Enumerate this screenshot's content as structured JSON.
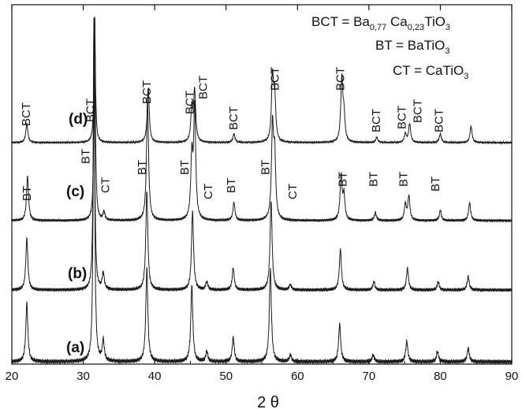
{
  "chart_data": {
    "type": "line",
    "xlabel": "2 θ",
    "ylabel": "",
    "xlim": [
      20,
      90
    ],
    "xticks": [
      20,
      30,
      40,
      50,
      60,
      70,
      80,
      90
    ],
    "grid": false,
    "legend": {
      "placement": "top-right",
      "entries": [
        {
          "lhs": "BCT = ",
          "parts": [
            [
              "Ba",
              ""
            ],
            [
              "0,77",
              "sub"
            ],
            [
              " Ca",
              ""
            ],
            [
              "0,23",
              "sub"
            ],
            [
              "TiO",
              ""
            ],
            [
              "3",
              "sub"
            ]
          ]
        },
        {
          "lhs": "BT = ",
          "parts": [
            [
              "BaTiO",
              ""
            ],
            [
              "3",
              "sub"
            ]
          ]
        },
        {
          "lhs": "CT = ",
          "parts": [
            [
              "CaTiO",
              ""
            ],
            [
              "3",
              "sub"
            ]
          ]
        }
      ]
    },
    "series": [
      {
        "name": "(a)",
        "peaks": [
          {
            "x": 22.1,
            "h": 0.17
          },
          {
            "x": 31.5,
            "h": 1.0
          },
          {
            "x": 32.8,
            "h": 0.06
          },
          {
            "x": 38.9,
            "h": 0.27
          },
          {
            "x": 45.2,
            "h": 0.22
          },
          {
            "x": 47.3,
            "h": 0.03
          },
          {
            "x": 51.0,
            "h": 0.07
          },
          {
            "x": 56.2,
            "h": 0.27
          },
          {
            "x": 59.0,
            "h": 0.02
          },
          {
            "x": 65.9,
            "h": 0.11
          },
          {
            "x": 70.6,
            "h": 0.02
          },
          {
            "x": 75.3,
            "h": 0.06
          },
          {
            "x": 79.6,
            "h": 0.03
          },
          {
            "x": 83.9,
            "h": 0.04
          }
        ]
      },
      {
        "name": "(b)",
        "peaks": [
          {
            "x": 22.1,
            "h": 0.19
          },
          {
            "x": 31.5,
            "h": 1.0
          },
          {
            "x": 32.8,
            "h": 0.06
          },
          {
            "x": 38.9,
            "h": 0.36
          },
          {
            "x": 45.3,
            "h": 0.29
          },
          {
            "x": 47.3,
            "h": 0.03
          },
          {
            "x": 51.0,
            "h": 0.08
          },
          {
            "x": 56.3,
            "h": 0.33
          },
          {
            "x": 59.0,
            "h": 0.02
          },
          {
            "x": 66.0,
            "h": 0.15
          },
          {
            "x": 70.7,
            "h": 0.03
          },
          {
            "x": 75.4,
            "h": 0.08
          },
          {
            "x": 79.7,
            "h": 0.03
          },
          {
            "x": 83.9,
            "h": 0.05
          }
        ]
      },
      {
        "name": "(c)",
        "peaks": [
          {
            "x": 22.2,
            "h": 0.22
          },
          {
            "x": 31.6,
            "h": 1.0
          },
          {
            "x": 32.9,
            "h": 0.04
          },
          {
            "x": 39.0,
            "h": 0.6
          },
          {
            "x": 45.2,
            "h": 0.3
          },
          {
            "x": 45.6,
            "h": 0.55
          },
          {
            "x": 51.1,
            "h": 0.09
          },
          {
            "x": 56.5,
            "h": 0.45
          },
          {
            "x": 56.8,
            "h": 0.3
          },
          {
            "x": 66.1,
            "h": 0.22
          },
          {
            "x": 66.5,
            "h": 0.12
          },
          {
            "x": 70.9,
            "h": 0.04
          },
          {
            "x": 75.1,
            "h": 0.08
          },
          {
            "x": 75.6,
            "h": 0.12
          },
          {
            "x": 80.0,
            "h": 0.05
          },
          {
            "x": 84.1,
            "h": 0.09
          }
        ]
      },
      {
        "name": "(d)",
        "peaks": [
          {
            "x": 22.1,
            "h": 0.15
          },
          {
            "x": 31.6,
            "h": 1.0
          },
          {
            "x": 39.1,
            "h": 0.43
          },
          {
            "x": 45.2,
            "h": 0.26
          },
          {
            "x": 45.6,
            "h": 0.4
          },
          {
            "x": 51.1,
            "h": 0.07
          },
          {
            "x": 56.5,
            "h": 0.5
          },
          {
            "x": 56.8,
            "h": 0.35
          },
          {
            "x": 66.2,
            "h": 0.5
          },
          {
            "x": 66.5,
            "h": 0.2
          },
          {
            "x": 71.1,
            "h": 0.04
          },
          {
            "x": 75.1,
            "h": 0.07
          },
          {
            "x": 75.7,
            "h": 0.15
          },
          {
            "x": 80.0,
            "h": 0.07
          },
          {
            "x": 84.3,
            "h": 0.13
          }
        ]
      }
    ],
    "phase_labels": [
      {
        "text": "BCT",
        "x": 22.0,
        "curve": "(d)"
      },
      {
        "text": "BCT",
        "x": 31.0,
        "curve": "(d)"
      },
      {
        "text": "BCT",
        "x": 38.9,
        "curve": "(d)"
      },
      {
        "text": "BCT",
        "x": 44.9,
        "curve": "(d)"
      },
      {
        "text": "BCT",
        "x": 46.8,
        "curve": "(d)"
      },
      {
        "text": "BCT",
        "x": 51.0,
        "curve": "(d)"
      },
      {
        "text": "BCT",
        "x": 56.8,
        "curve": "(d)"
      },
      {
        "text": "BCT",
        "x": 66.0,
        "curve": "(d)"
      },
      {
        "text": "BCT",
        "x": 71.0,
        "curve": "(d)"
      },
      {
        "text": "BCT",
        "x": 74.6,
        "curve": "(d)"
      },
      {
        "text": "BCT",
        "x": 76.8,
        "curve": "(d)"
      },
      {
        "text": "BCT",
        "x": 79.8,
        "curve": "(d)"
      },
      {
        "text": "BT",
        "x": 22.1,
        "curve": "(c)"
      },
      {
        "text": "BT",
        "x": 30.3,
        "curve": "(c)"
      },
      {
        "text": "CT",
        "x": 33.1,
        "curve": "(c)"
      },
      {
        "text": "BT",
        "x": 38.2,
        "curve": "(c)"
      },
      {
        "text": "BT",
        "x": 44.2,
        "curve": "(c)"
      },
      {
        "text": "CT",
        "x": 47.5,
        "curve": "(c)"
      },
      {
        "text": "BT",
        "x": 50.7,
        "curve": "(c)"
      },
      {
        "text": "BT",
        "x": 55.5,
        "curve": "(c)"
      },
      {
        "text": "CT",
        "x": 59.3,
        "curve": "(c)"
      },
      {
        "text": "BT",
        "x": 66.3,
        "curve": "(c)"
      },
      {
        "text": "BT",
        "x": 70.6,
        "curve": "(c)"
      },
      {
        "text": "BT",
        "x": 74.8,
        "curve": "(c)"
      },
      {
        "text": "BT",
        "x": 79.3,
        "curve": "(c)"
      }
    ]
  }
}
